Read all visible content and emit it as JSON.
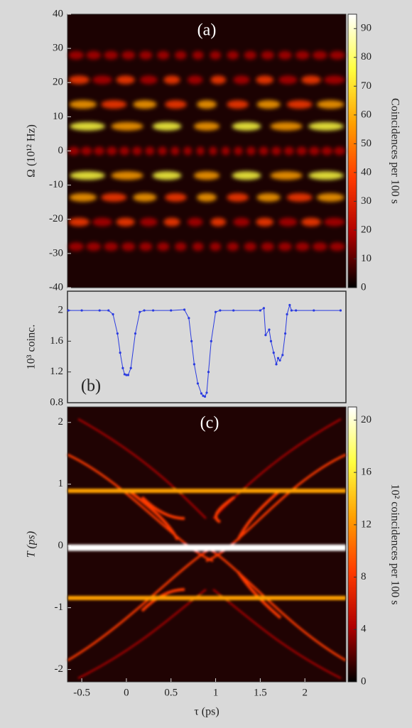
{
  "chart_data": [
    {
      "type": "heatmap",
      "annotation": "(a)",
      "ylabel": "Ω (10¹² Hz)",
      "ylim": [
        -40,
        40
      ],
      "yticks": [
        -40,
        -30,
        -20,
        -10,
        0,
        10,
        20,
        30,
        40
      ],
      "colormap": [
        "#000000",
        "#b00000",
        "#ff3a00",
        "#ffa000",
        "#ffff40",
        "#ffffff"
      ],
      "colorbar": {
        "label": "Coincidences per 100 s",
        "lim": [
          0,
          95
        ],
        "ticks": [
          0,
          10,
          20,
          30,
          40,
          50,
          60,
          70,
          80,
          90
        ]
      }
    },
    {
      "type": "line",
      "annotation": "(b)",
      "ylabel": "10³ coinc.",
      "xlim": [
        -0.66,
        2.46
      ],
      "ylim": [
        0.8,
        2.25
      ],
      "yticks": [
        0.8,
        1.2,
        1.6,
        2
      ],
      "x": [
        -0.65,
        -0.5,
        -0.3,
        -0.2,
        -0.15,
        -0.1,
        -0.07,
        -0.04,
        -0.02,
        0,
        0.02,
        0.05,
        0.1,
        0.15,
        0.2,
        0.3,
        0.5,
        0.65,
        0.7,
        0.73,
        0.76,
        0.8,
        0.84,
        0.86,
        0.88,
        0.9,
        0.92,
        0.95,
        1.0,
        1.05,
        1.2,
        1.5,
        1.54,
        1.56,
        1.6,
        1.62,
        1.65,
        1.68,
        1.7,
        1.72,
        1.75,
        1.78,
        1.8,
        1.83,
        1.85,
        1.9,
        2.1,
        2.4
      ],
      "series": [
        {
          "color": "#2a3be0",
          "values": [
            2.0,
            2.0,
            2.0,
            2.0,
            1.95,
            1.7,
            1.45,
            1.25,
            1.17,
            1.16,
            1.16,
            1.25,
            1.7,
            1.98,
            2.0,
            2.0,
            2.0,
            2.01,
            1.9,
            1.6,
            1.3,
            1.05,
            0.92,
            0.89,
            0.88,
            0.93,
            1.2,
            1.6,
            1.98,
            2.0,
            2.0,
            2.0,
            2.03,
            1.68,
            1.75,
            1.6,
            1.45,
            1.3,
            1.38,
            1.35,
            1.42,
            1.7,
            1.95,
            2.07,
            2.0,
            2.0,
            2.0,
            2.0
          ]
        }
      ]
    },
    {
      "type": "heatmap",
      "annotation": "(c)",
      "xlabel": "τ (ps)",
      "ylabel": "T (ps)",
      "xlim": [
        -0.66,
        2.46
      ],
      "xticks": [
        -0.5,
        0,
        0.5,
        1,
        1.5,
        2
      ],
      "ylim": [
        -2.2,
        2.25
      ],
      "yticks": [
        -2,
        -1,
        0,
        1,
        2
      ],
      "colormap": [
        "#000000",
        "#b00000",
        "#ff3a00",
        "#ffa000",
        "#ffff40",
        "#ffffff"
      ],
      "colorbar": {
        "label": "10² coincidences per 100 s",
        "lim": [
          0,
          21
        ],
        "ticks": [
          0,
          4,
          8,
          12,
          16,
          20
        ]
      }
    }
  ]
}
